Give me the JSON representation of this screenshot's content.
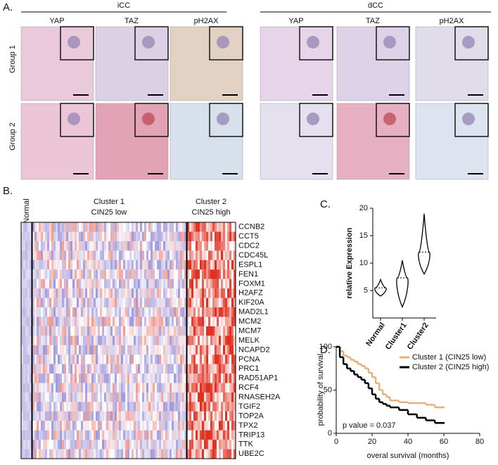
{
  "panel_a": {
    "label": "A.",
    "groups": [
      {
        "title": "iCC",
        "columns": [
          "YAP",
          "TAZ",
          "pH2AX"
        ]
      },
      {
        "title": "dCC",
        "columns": [
          "YAP",
          "TAZ",
          "pH2AX"
        ]
      }
    ],
    "rows": [
      "Group 1",
      "Group 2"
    ]
  },
  "panel_b": {
    "label": "B.",
    "normal": "Normal",
    "clusters": [
      {
        "name": "Cluster 1",
        "subtitle": "CIN25 low"
      },
      {
        "name": "Cluster 2",
        "subtitle": "CIN25 high"
      }
    ],
    "genes": [
      "CCNB2",
      "CCT5",
      "CDC2",
      "CDC45L",
      "ESPL1",
      "FEN1",
      "FOXM1",
      "H2AFZ",
      "KIF20A",
      "MAD2L1",
      "MCM2",
      "MCM7",
      "MELK",
      "NCAPD2",
      "PCNA",
      "PRC1",
      "RAD51AP1",
      "RCF4",
      "RNASEH2A",
      "TGIF2",
      "TOP2A",
      "TPX2",
      "TRIP13",
      "TTK",
      "UBE2C"
    ]
  },
  "chart_data": [
    {
      "panel_label": "C.",
      "type": "violin",
      "y_label": "relative Expression",
      "categories": [
        "Normal",
        "Cluster1",
        "Cluster2"
      ],
      "medians": [
        5.5,
        7.3,
        12
      ],
      "mins": [
        4,
        2,
        8
      ],
      "maxs": [
        7,
        10.5,
        19
      ],
      "color": "#000000",
      "ylim": [
        0,
        20
      ],
      "yticks": [
        5,
        10,
        15,
        20
      ]
    },
    {
      "panel_label": "D.",
      "type": "step",
      "x_label": "overal survival (months)",
      "y_label": "probability of survival",
      "annotation": "p value = 0.037",
      "x": [
        0,
        2,
        4,
        6,
        8,
        10,
        12,
        14,
        16,
        18,
        20,
        22,
        24,
        26,
        28,
        30,
        35,
        40,
        45,
        50,
        55,
        60
      ],
      "series": [
        {
          "name": "Cluster 1 (CIN25 low)",
          "color": "#e8b07c",
          "values": [
            100,
            95,
            90,
            88,
            85,
            83,
            80,
            78,
            75,
            70,
            65,
            58,
            50,
            45,
            42,
            38,
            36,
            35,
            35,
            33,
            30,
            30
          ]
        },
        {
          "name": "Cluster 2 (CIN25 high)",
          "color": "#000000",
          "values": [
            100,
            88,
            80,
            75,
            72,
            68,
            65,
            62,
            58,
            52,
            45,
            40,
            36,
            34,
            32,
            30,
            27,
            22,
            18,
            15,
            12,
            12
          ]
        }
      ],
      "xlim": [
        0,
        80
      ],
      "xticks": [
        0,
        20,
        40,
        60,
        80
      ],
      "ylim": [
        0,
        100
      ],
      "yticks": [
        0,
        50,
        100
      ],
      "legend": "upper right"
    }
  ]
}
